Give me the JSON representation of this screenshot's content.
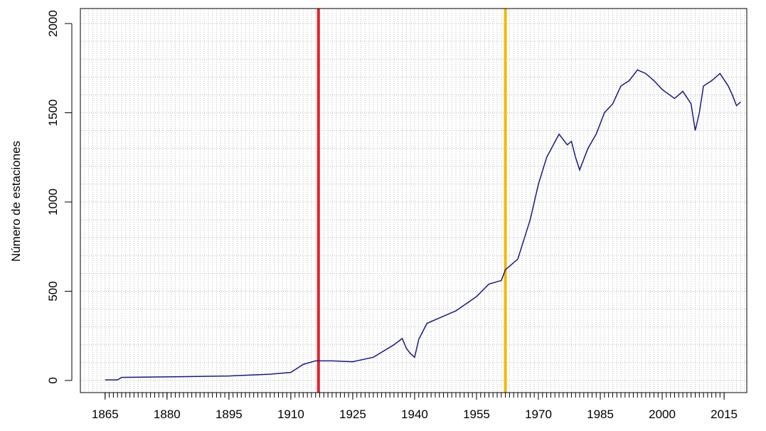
{
  "chart_data": {
    "type": "line",
    "y_label": "Número de estaciones",
    "x": [
      1865,
      1868,
      1869,
      1880,
      1895,
      1905,
      1910,
      1913,
      1916,
      1920,
      1925,
      1930,
      1935,
      1937,
      1938,
      1939,
      1940,
      1941,
      1943,
      1945,
      1950,
      1955,
      1958,
      1961,
      1962,
      1965,
      1968,
      1970,
      1972,
      1975,
      1977,
      1978,
      1979,
      1980,
      1982,
      1984,
      1986,
      1988,
      1990,
      1992,
      1994,
      1996,
      1998,
      2000,
      2003,
      2005,
      2007,
      2008,
      2009,
      2010,
      2012,
      2014,
      2016,
      2017,
      2018,
      2019
    ],
    "series": [
      {
        "color": "#1a1a80",
        "values": [
          3,
          3,
          17,
          20,
          25,
          35,
          45,
          90,
          110,
          110,
          105,
          130,
          200,
          235,
          180,
          150,
          130,
          230,
          320,
          340,
          390,
          470,
          540,
          560,
          620,
          680,
          900,
          1100,
          1250,
          1380,
          1320,
          1340,
          1250,
          1180,
          1300,
          1380,
          1500,
          1550,
          1650,
          1680,
          1740,
          1720,
          1680,
          1630,
          1580,
          1620,
          1550,
          1400,
          1500,
          1650,
          1680,
          1720,
          1650,
          1600,
          1540,
          1560
        ]
      }
    ],
    "xlim": [
      1859,
      2020.5
    ],
    "ylim": [
      -68,
      2084
    ],
    "xticks": [
      1865,
      1880,
      1895,
      1910,
      1925,
      1940,
      1955,
      1970,
      1985,
      2000,
      2015
    ],
    "yticks": [
      0,
      500,
      1000,
      1500,
      2000
    ],
    "grid": {
      "x_step": 1,
      "y_step": 100,
      "color": "#bbbbbb"
    },
    "vlines": [
      {
        "x": 1916.7,
        "color": "#e8202a"
      },
      {
        "x": 1962,
        "color": "#f5b800"
      }
    ]
  }
}
